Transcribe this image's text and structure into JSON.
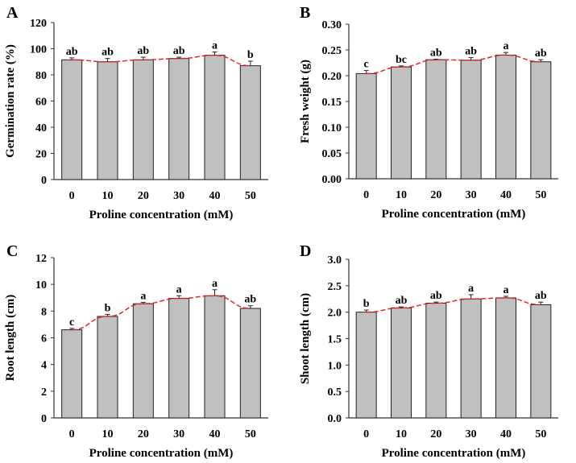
{
  "chart_data": [
    {
      "panel": "A",
      "type": "bar",
      "categories": [
        "0",
        "10",
        "20",
        "30",
        "40",
        "50"
      ],
      "values": [
        91.5,
        90,
        91.5,
        92.5,
        95,
        87
      ],
      "errors": [
        1.5,
        2.5,
        2,
        1,
        2.5,
        3.5
      ],
      "letters": [
        "ab",
        "ab",
        "ab",
        "ab",
        "a",
        "b"
      ],
      "xlabel": "Proline concentration (mM)",
      "ylabel": "Germination rate (%)",
      "ylim": [
        0,
        120
      ],
      "yticks": [
        "0",
        "20",
        "40",
        "60",
        "80",
        "100",
        "120"
      ],
      "trend_line": "red dashed"
    },
    {
      "panel": "B",
      "type": "bar",
      "categories": [
        "0",
        "10",
        "20",
        "30",
        "40",
        "50"
      ],
      "values": [
        0.204,
        0.217,
        0.231,
        0.23,
        0.24,
        0.227
      ],
      "errors": [
        0.006,
        0.002,
        0.001,
        0.005,
        0.005,
        0.004
      ],
      "letters": [
        "c",
        "bc",
        "ab",
        "ab",
        "a",
        "ab"
      ],
      "xlabel": "Proline concentration (mM)",
      "ylabel": "Fresh weight (g)",
      "ylim": [
        0,
        0.3
      ],
      "yticks": [
        "0.00",
        "0.05",
        "0.10",
        "0.15",
        "0.20",
        "0.25",
        "0.30"
      ],
      "trend_line": "red dashed"
    },
    {
      "panel": "C",
      "type": "bar",
      "categories": [
        "0",
        "10",
        "20",
        "30",
        "40",
        "50"
      ],
      "values": [
        6.6,
        7.6,
        8.55,
        8.95,
        9.15,
        8.2
      ],
      "errors": [
        0.1,
        0.15,
        0.1,
        0.2,
        0.45,
        0.2
      ],
      "letters": [
        "c",
        "b",
        "a",
        "a",
        "a",
        "ab"
      ],
      "xlabel": "Proline concentration (mM)",
      "ylabel": "Root length (cm)",
      "ylim": [
        0,
        12
      ],
      "yticks": [
        "0",
        "2",
        "4",
        "6",
        "8",
        "10",
        "12"
      ],
      "trend_line": "red dashed"
    },
    {
      "panel": "D",
      "type": "bar",
      "categories": [
        "0",
        "10",
        "20",
        "30",
        "40",
        "50"
      ],
      "values": [
        2.0,
        2.08,
        2.17,
        2.25,
        2.27,
        2.14
      ],
      "errors": [
        0.04,
        0.02,
        0.02,
        0.08,
        0.03,
        0.05
      ],
      "letters": [
        "b",
        "ab",
        "ab",
        "a",
        "a",
        "ab"
      ],
      "xlabel": "Proline concentration (mM)",
      "ylabel": "Shoot length (cm)",
      "ylim": [
        0,
        3.0
      ],
      "yticks": [
        "0.0",
        "0.5",
        "1.0",
        "1.5",
        "2.0",
        "2.5",
        "3.0"
      ],
      "trend_line": "red dashed"
    }
  ],
  "colors": {
    "bar": "#c0c0c0",
    "trend": "#e8262a",
    "axis": "#333333"
  }
}
